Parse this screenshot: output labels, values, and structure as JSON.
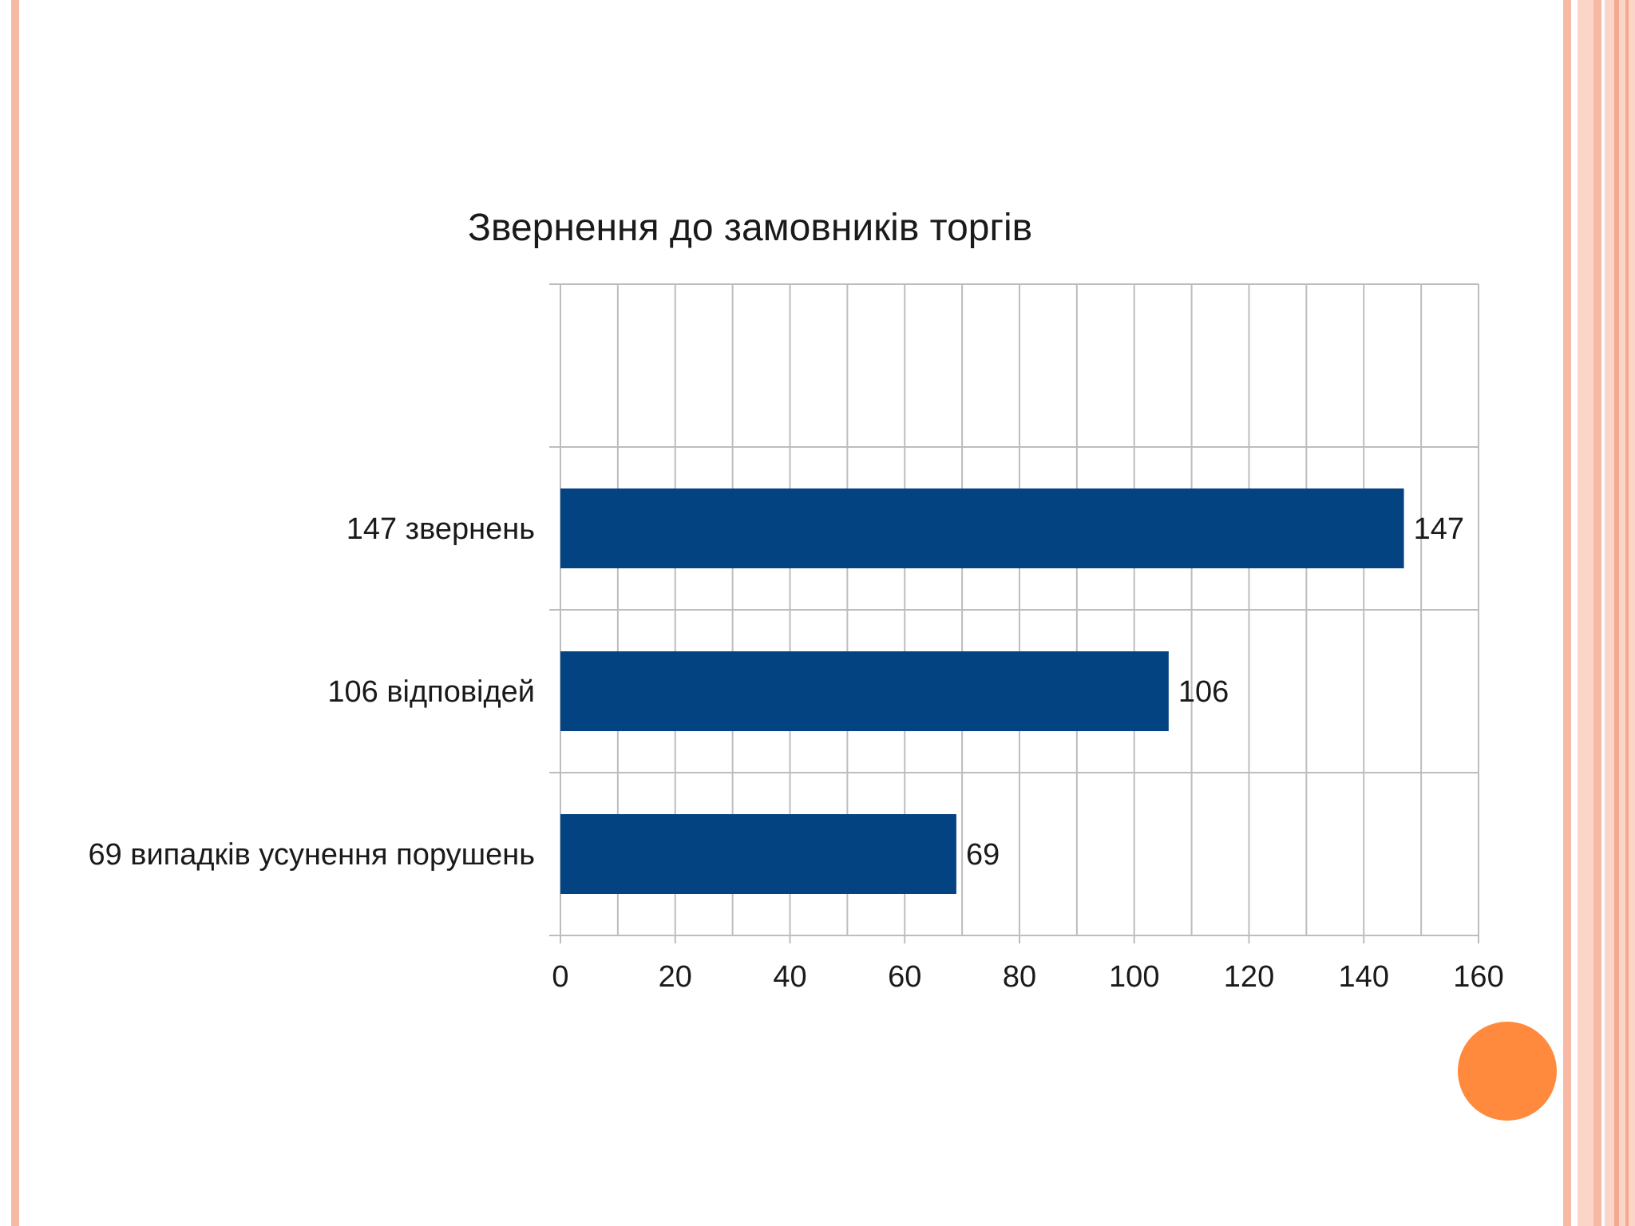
{
  "chart_data": {
    "type": "bar",
    "orientation": "horizontal",
    "title": "Звернення до замовників торгів",
    "categories": [
      "147 звернень",
      "106 відповідей",
      "69 випадків усунення порушень"
    ],
    "values": [
      147,
      106,
      69
    ],
    "data_labels": [
      "147",
      "106",
      "69"
    ],
    "xlim": [
      0,
      160
    ],
    "x_ticks": [
      0,
      20,
      40,
      60,
      80,
      100,
      120,
      140,
      160
    ],
    "x_tick_labels": [
      "0",
      "20",
      "40",
      "60",
      "80",
      "100",
      "120",
      "140",
      "160"
    ],
    "grid": true,
    "bar_color": "#044382",
    "grid_color": "#bdbdbd"
  },
  "decor": {
    "border_color": "#f7b9a6",
    "accent_dot_color": "#ff8a3d"
  }
}
